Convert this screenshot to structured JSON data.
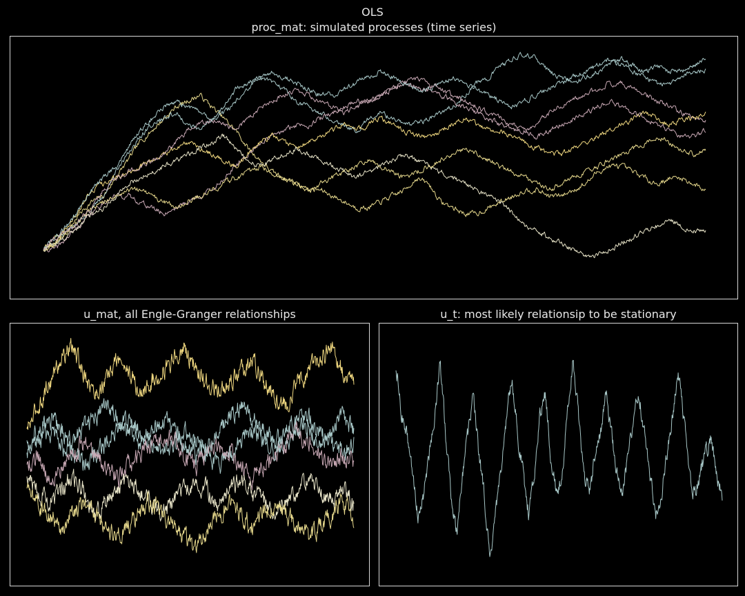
{
  "suptitle": "OLS",
  "chart_data": [
    {
      "type": "line",
      "title": "proc_mat: simulated processes (time series)",
      "axes_visible": false,
      "grid": false,
      "x": {
        "start": 0,
        "end": 1000
      },
      "ylim": [
        -6,
        34
      ],
      "series_colors": [
        "#e6d88c",
        "#a8c8c8",
        "#c8a8b4",
        "#f0d880",
        "#e8e4c8"
      ],
      "series": [
        {
          "color": "#e6d88c",
          "values": [
            0,
            2,
            3,
            6,
            8,
            9,
            12,
            15,
            18,
            20,
            22,
            24,
            25,
            26,
            24,
            22,
            20,
            17,
            15,
            13,
            12,
            11,
            10,
            10,
            9,
            8,
            7,
            7,
            8,
            9,
            10,
            12,
            11,
            8,
            7,
            6,
            6,
            7,
            8,
            9,
            10,
            10,
            9,
            9,
            10,
            11,
            13,
            14,
            14,
            13,
            12,
            11,
            12,
            12,
            11,
            10
          ]
        },
        {
          "color": "#a8c8c8",
          "values": [
            0,
            1,
            3,
            5,
            7,
            9,
            13,
            16,
            19,
            21,
            22,
            23,
            21,
            20,
            22,
            24,
            27,
            28,
            29,
            28,
            27,
            25,
            24,
            23,
            22,
            21,
            20,
            22,
            23,
            22,
            21,
            21,
            22,
            23,
            24,
            26,
            28,
            29,
            31,
            32,
            33,
            32,
            30,
            29,
            28,
            29,
            30,
            31,
            32,
            31,
            30,
            31,
            30,
            30,
            31,
            32
          ]
        },
        {
          "color": "#c8a8b4",
          "values": [
            0,
            0,
            2,
            4,
            6,
            8,
            9,
            9,
            8,
            7,
            6,
            7,
            8,
            9,
            10,
            12,
            14,
            16,
            18,
            19,
            20,
            21,
            21,
            22,
            23,
            24,
            25,
            25,
            26,
            27,
            28,
            27,
            27,
            26,
            25,
            24,
            23,
            22,
            21,
            20,
            20,
            21,
            23,
            24,
            25,
            26,
            27,
            28,
            28,
            27,
            26,
            25,
            24,
            23,
            22,
            22
          ]
        },
        {
          "color": "#f0d880",
          "values": [
            0,
            1,
            4,
            7,
            10,
            11,
            12,
            13,
            14,
            15,
            16,
            17,
            18,
            17,
            16,
            15,
            14,
            16,
            18,
            19,
            18,
            17,
            18,
            19,
            20,
            21,
            20,
            21,
            22,
            21,
            20,
            19,
            19,
            20,
            21,
            22,
            21,
            20,
            20,
            19,
            18,
            17,
            16,
            16,
            17,
            18,
            19,
            20,
            21,
            22,
            23,
            22,
            21,
            22,
            22,
            23
          ]
        },
        {
          "color": "#e8e4c8",
          "values": [
            0,
            1,
            2,
            4,
            6,
            7,
            9,
            11,
            12,
            13,
            14,
            15,
            16,
            17,
            18,
            19,
            17,
            15,
            14,
            15,
            16,
            17,
            16,
            15,
            14,
            13,
            12,
            13,
            14,
            15,
            16,
            15,
            14,
            13,
            12,
            11,
            10,
            9,
            8,
            6,
            4,
            3,
            2,
            1,
            0,
            -1,
            -1,
            0,
            1,
            2,
            3,
            4,
            5,
            4,
            3,
            3
          ]
        },
        {
          "color": "#a8c8c8",
          "values": [
            0,
            2,
            4,
            7,
            10,
            12,
            14,
            17,
            20,
            22,
            24,
            25,
            24,
            23,
            22,
            23,
            25,
            27,
            29,
            30,
            29,
            28,
            27,
            26,
            26,
            27,
            28,
            29,
            30,
            29,
            28,
            27,
            27,
            28,
            29,
            28,
            27,
            26,
            25,
            24,
            25,
            26,
            27,
            28,
            29,
            30,
            31,
            32,
            31,
            30,
            29,
            28,
            28,
            29,
            30,
            30
          ]
        },
        {
          "color": "#e6d88c",
          "values": [
            0,
            1,
            3,
            5,
            7,
            8,
            9,
            10,
            10,
            9,
            8,
            7,
            8,
            9,
            10,
            11,
            12,
            13,
            14,
            13,
            12,
            11,
            10,
            11,
            12,
            13,
            14,
            15,
            14,
            13,
            12,
            13,
            14,
            15,
            16,
            17,
            16,
            15,
            14,
            13,
            12,
            11,
            10,
            11,
            12,
            13,
            14,
            15,
            16,
            17,
            18,
            19,
            18,
            17,
            16,
            17
          ]
        },
        {
          "color": "#c8a8b4",
          "values": [
            0,
            2,
            3,
            5,
            7,
            10,
            12,
            13,
            14,
            15,
            16,
            18,
            20,
            21,
            22,
            21,
            20,
            22,
            24,
            25,
            26,
            27,
            26,
            25,
            24,
            23,
            24,
            25,
            26,
            27,
            28,
            29,
            28,
            27,
            26,
            25,
            24,
            23,
            22,
            21,
            20,
            19,
            20,
            21,
            22,
            23,
            24,
            25,
            24,
            23,
            22,
            21,
            20,
            19,
            19,
            20
          ]
        }
      ]
    },
    {
      "type": "line",
      "title": "u_mat, all Engle-Granger relationships",
      "axes_visible": false,
      "grid": false,
      "x": {
        "start": 0,
        "end": 1000
      },
      "ylim": [
        -10,
        10
      ],
      "series_colors": [
        "#f0d880",
        "#a8c8c8",
        "#c8a8b4",
        "#e8e4c8",
        "#e6d88c"
      ],
      "series": [
        {
          "color": "#f0d880",
          "values": [
            2,
            4,
            6,
            8,
            9,
            7,
            5,
            6,
            8,
            7,
            5,
            6,
            7,
            8,
            9,
            7,
            6,
            5,
            6,
            7,
            8,
            6,
            5,
            4,
            6,
            7,
            8,
            9,
            7,
            6
          ]
        },
        {
          "color": "#a8c8c8",
          "values": [
            0,
            1,
            2,
            1,
            0,
            -1,
            0,
            1,
            2,
            3,
            2,
            1,
            0,
            1,
            2,
            1,
            0,
            -1,
            0,
            1,
            2,
            1,
            0,
            1,
            2,
            3,
            2,
            1,
            0,
            1
          ]
        },
        {
          "color": "#c8a8b4",
          "values": [
            -1,
            0,
            -2,
            -1,
            0,
            1,
            0,
            -1,
            -2,
            -1,
            0,
            1,
            2,
            1,
            0,
            -1,
            0,
            1,
            0,
            -1,
            -2,
            -1,
            0,
            1,
            2,
            1,
            0,
            -1,
            0,
            -1
          ]
        },
        {
          "color": "#e8e4c8",
          "values": [
            -2,
            -3,
            -4,
            -3,
            -2,
            -3,
            -5,
            -4,
            -3,
            -2,
            -3,
            -4,
            -5,
            -4,
            -3,
            -2,
            -3,
            -4,
            -3,
            -2,
            -3,
            -4,
            -5,
            -4,
            -3,
            -2,
            -3,
            -4,
            -3,
            -4
          ]
        },
        {
          "color": "#e6d88c",
          "values": [
            -3,
            -4,
            -5,
            -6,
            -5,
            -4,
            -5,
            -6,
            -7,
            -6,
            -5,
            -4,
            -5,
            -6,
            -7,
            -8,
            -6,
            -5,
            -4,
            -5,
            -6,
            -5,
            -4,
            -5,
            -6,
            -7,
            -6,
            -5,
            -4,
            -5
          ]
        },
        {
          "color": "#a8c8c8",
          "values": [
            1,
            2,
            3,
            2,
            1,
            2,
            3,
            4,
            3,
            2,
            1,
            2,
            3,
            2,
            1,
            0,
            1,
            2,
            3,
            4,
            3,
            2,
            1,
            2,
            3,
            2,
            1,
            2,
            3,
            2
          ]
        }
      ]
    },
    {
      "type": "line",
      "title": "u_t: most likely relationsip to be stationary",
      "axes_visible": false,
      "grid": false,
      "x": {
        "start": 0,
        "end": 1000
      },
      "ylim": [
        -6,
        6
      ],
      "series_colors": [
        "#a8c8c8"
      ],
      "series": [
        {
          "color": "#a8c8c8",
          "values": [
            4.5,
            2,
            1,
            -1,
            -3,
            -2,
            0,
            2,
            4.5,
            1,
            -2,
            -4,
            -1,
            1,
            3,
            0,
            -2,
            -5.5,
            -3,
            -1,
            2,
            4,
            1,
            -1,
            -3,
            -1,
            2,
            3,
            0,
            -2,
            -1,
            2,
            4.8,
            2,
            -1,
            -2,
            0,
            1,
            3,
            1,
            -1,
            -2,
            0,
            2,
            3,
            1,
            -1,
            -3,
            -2,
            0,
            2,
            4,
            2,
            -1,
            -2,
            -1,
            0,
            1,
            -1,
            -2
          ]
        }
      ]
    }
  ]
}
